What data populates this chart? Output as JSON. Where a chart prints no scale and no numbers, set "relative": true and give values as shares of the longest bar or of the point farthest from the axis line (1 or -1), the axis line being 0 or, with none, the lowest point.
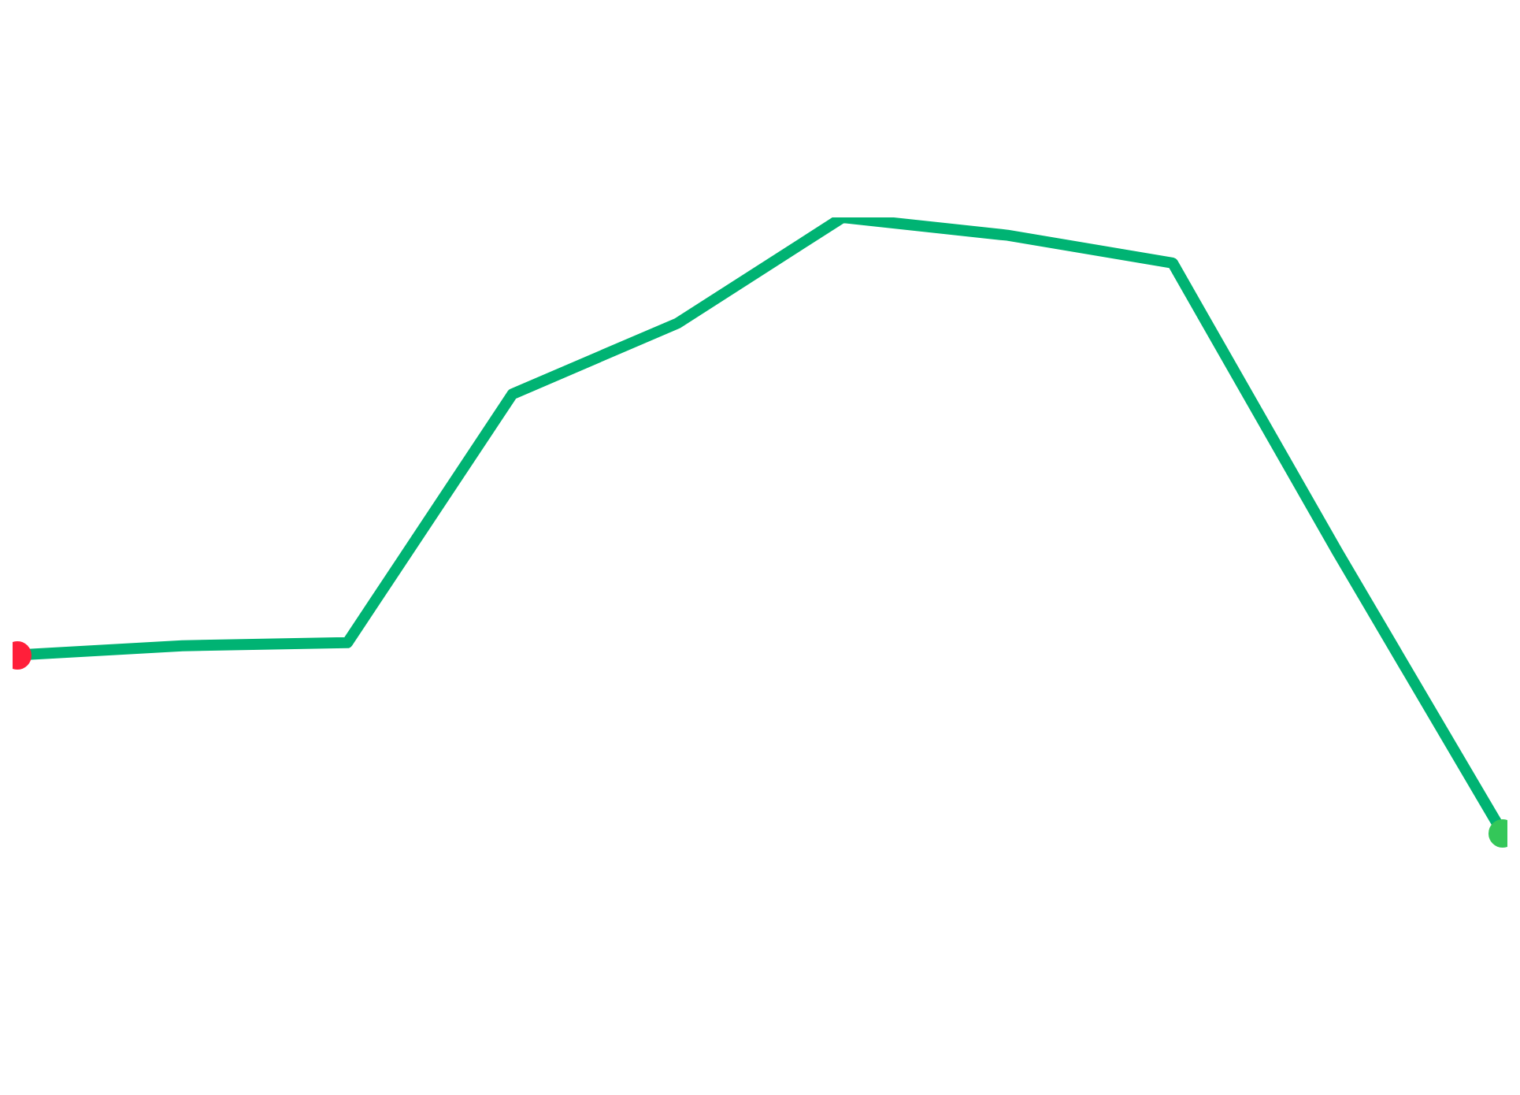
{
  "chart_data": {
    "type": "line",
    "relative": true,
    "legend": false,
    "categories": [
      null,
      null,
      null,
      null,
      null,
      null,
      null,
      null,
      null,
      null
    ],
    "series": [
      {
        "color": "#00b373",
        "values": [
          0.289,
          0.304,
          0.309,
          0.713,
          0.828,
          1,
          0.971,
          0.926,
          0.456,
          0
        ]
      }
    ]
  }
}
